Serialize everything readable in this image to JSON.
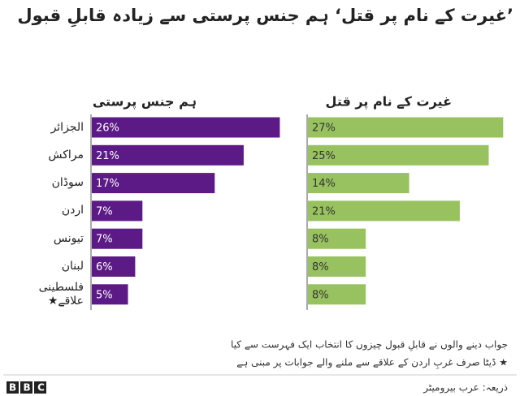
{
  "title": "’غیرت کے نام پر قتل‘ ہم جنس پرستی سے زیادہ قابلِ قبول",
  "chart_data": [
    {
      "type": "bar",
      "orientation": "horizontal",
      "title": "ہم جنس پرستی",
      "categories": [
        "الجزائر",
        "مراکش",
        "سوڈان",
        "اردن",
        "تیونس",
        "لبنان",
        "فلسطینی علاقے★"
      ],
      "values": [
        26,
        21,
        17,
        7,
        7,
        6,
        5
      ],
      "value_labels": [
        "26%",
        "21%",
        "17%",
        "7%",
        "7%",
        "6%",
        "5%"
      ],
      "color": "#5c1a86"
    },
    {
      "type": "bar",
      "orientation": "horizontal",
      "title": "غیرت کے نام پر قتل",
      "values": [
        27,
        25,
        14,
        21,
        8,
        8,
        8
      ],
      "value_labels": [
        "27%",
        "25%",
        "14%",
        "21%",
        "8%",
        "8%",
        "8%"
      ],
      "color": "#98c25f"
    }
  ],
  "notes": [
    "جواب دینے والوں نے قابلِ قبول چیزوں کا انتخاب ایک فہرست سے کیا",
    "★ ڈیٹا صرف غربِ اردن کے علاقے سے ملنے والے جوابات پر مبنی ہے"
  ],
  "source": "ذریعہ: عرب بیرومیٹر",
  "logo": "BBC"
}
